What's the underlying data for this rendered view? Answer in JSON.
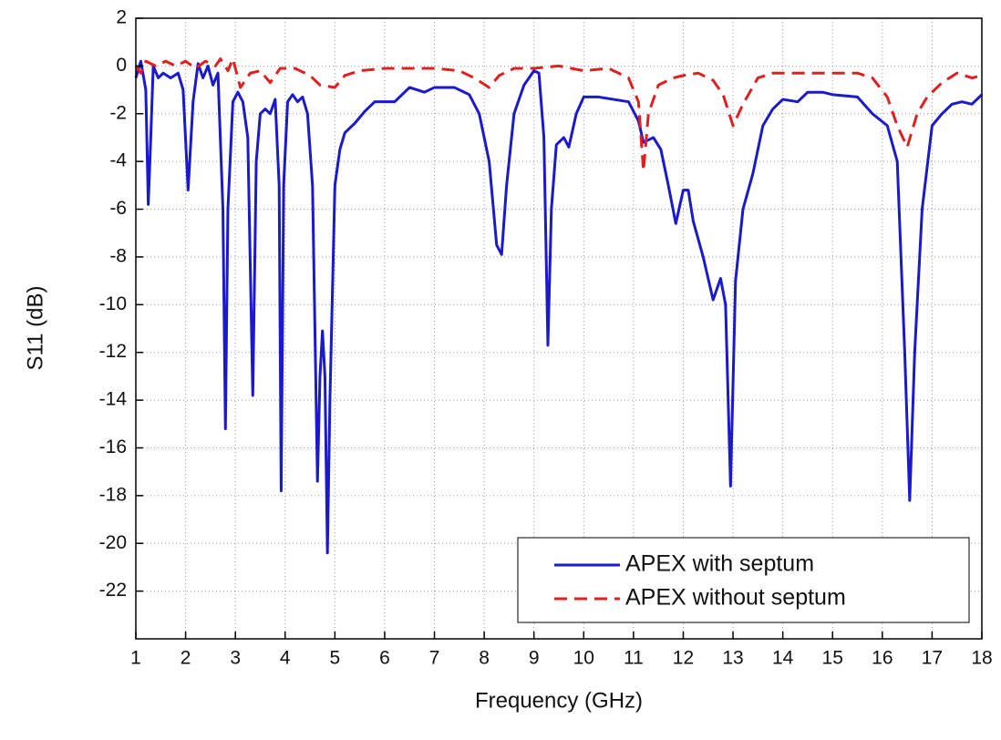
{
  "chart_data": {
    "type": "line",
    "xlabel": "Frequency (GHz)",
    "ylabel": "S11 (dB)",
    "xlim": [
      1,
      18
    ],
    "ylim": [
      -24,
      2
    ],
    "xticks": [
      1,
      2,
      3,
      4,
      5,
      6,
      7,
      8,
      9,
      10,
      11,
      12,
      13,
      14,
      15,
      16,
      17,
      18
    ],
    "yticks": [
      2,
      0,
      -2,
      -4,
      -6,
      -8,
      -10,
      -12,
      -14,
      -16,
      -18,
      -20,
      -22
    ],
    "grid": true,
    "legend": "lower right",
    "series": [
      {
        "name": "APEX with septum",
        "color": "#1a1acc",
        "style": "solid",
        "x": [
          1.0,
          1.1,
          1.2,
          1.25,
          1.3,
          1.35,
          1.45,
          1.55,
          1.7,
          1.85,
          1.95,
          2.05,
          2.15,
          2.25,
          2.35,
          2.45,
          2.55,
          2.65,
          2.75,
          2.8,
          2.85,
          2.95,
          3.05,
          3.15,
          3.25,
          3.35,
          3.42,
          3.5,
          3.6,
          3.7,
          3.8,
          3.88,
          3.92,
          3.97,
          4.05,
          4.15,
          4.25,
          4.35,
          4.45,
          4.55,
          4.65,
          4.7,
          4.75,
          4.8,
          4.85,
          4.9,
          5.0,
          5.1,
          5.2,
          5.4,
          5.6,
          5.8,
          6.0,
          6.2,
          6.5,
          6.8,
          7.0,
          7.4,
          7.7,
          7.9,
          8.1,
          8.25,
          8.35,
          8.45,
          8.6,
          8.8,
          9.0,
          9.1,
          9.2,
          9.28,
          9.35,
          9.45,
          9.6,
          9.7,
          9.85,
          10.0,
          10.3,
          10.6,
          10.9,
          11.1,
          11.2,
          11.4,
          11.55,
          11.7,
          11.85,
          12.0,
          12.1,
          12.2,
          12.4,
          12.6,
          12.75,
          12.85,
          12.95,
          13.05,
          13.2,
          13.4,
          13.6,
          13.8,
          14.0,
          14.3,
          14.5,
          14.8,
          15.0,
          15.5,
          15.8,
          16.1,
          16.3,
          16.45,
          16.55,
          16.65,
          16.8,
          17.0,
          17.2,
          17.4,
          17.6,
          17.8,
          18.0
        ],
        "values": [
          -0.5,
          0.2,
          -1,
          -5.8,
          -3,
          0,
          -0.5,
          -0.3,
          -0.5,
          -0.3,
          -1,
          -5.2,
          -1.5,
          0.1,
          -0.5,
          0,
          -0.8,
          -0.3,
          -6,
          -15.2,
          -6,
          -1.5,
          -1.1,
          -1.5,
          -3,
          -13.8,
          -4,
          -2,
          -1.8,
          -2,
          -1.4,
          -5,
          -17.8,
          -5,
          -1.5,
          -1.2,
          -1.5,
          -1.3,
          -2,
          -5,
          -17.4,
          -13,
          -11.1,
          -13,
          -20.4,
          -14,
          -5,
          -3.5,
          -2.8,
          -2.4,
          -1.9,
          -1.5,
          -1.5,
          -1.5,
          -0.9,
          -1.1,
          -0.9,
          -0.9,
          -1.2,
          -2,
          -4,
          -7.5,
          -7.9,
          -5,
          -2,
          -0.8,
          -0.2,
          -0.3,
          -3,
          -11.7,
          -6,
          -3.3,
          -3,
          -3.4,
          -2,
          -1.3,
          -1.3,
          -1.4,
          -1.5,
          -2.3,
          -3.2,
          -3,
          -3.5,
          -5,
          -6.6,
          -5.2,
          -5.2,
          -6.5,
          -8,
          -9.8,
          -8.9,
          -10,
          -17.6,
          -9,
          -6,
          -4.5,
          -2.5,
          -1.8,
          -1.4,
          -1.5,
          -1.1,
          -1.1,
          -1.2,
          -1.3,
          -2,
          -2.5,
          -4,
          -12,
          -18.2,
          -12,
          -6,
          -2.5,
          -2,
          -1.6,
          -1.5,
          -1.6,
          -1.2
        ]
      },
      {
        "name": "APEX without septum",
        "color": "#e02020",
        "style": "dashed",
        "x": [
          1.0,
          1.1,
          1.2,
          1.4,
          1.6,
          1.8,
          2.0,
          2.2,
          2.4,
          2.6,
          2.7,
          2.85,
          2.95,
          3.1,
          3.3,
          3.5,
          3.7,
          3.9,
          4.2,
          4.5,
          4.7,
          5.0,
          5.2,
          5.5,
          6.0,
          7.0,
          7.5,
          7.8,
          8.1,
          8.3,
          8.6,
          9.0,
          9.5,
          10.0,
          10.5,
          10.9,
          11.1,
          11.2,
          11.3,
          11.5,
          11.8,
          12.0,
          12.3,
          12.6,
          12.8,
          13.0,
          13.2,
          13.5,
          13.8,
          14.0,
          14.5,
          15.0,
          15.5,
          15.8,
          16.1,
          16.3,
          16.5,
          16.7,
          16.9,
          17.2,
          17.5,
          17.8,
          18.0
        ],
        "values": [
          0,
          -0.3,
          0.2,
          0,
          0.2,
          0,
          0.2,
          -0.1,
          0.2,
          0,
          0.3,
          -0.2,
          0.3,
          -0.9,
          -0.3,
          -0.2,
          -0.7,
          -0.1,
          -0.1,
          -0.4,
          -0.8,
          -0.9,
          -0.4,
          -0.2,
          -0.1,
          -0.1,
          -0.2,
          -0.5,
          -0.9,
          -0.4,
          -0.1,
          -0.1,
          0,
          -0.2,
          -0.1,
          -0.5,
          -1.5,
          -4.4,
          -2,
          -0.8,
          -0.5,
          -0.4,
          -0.3,
          -0.6,
          -1.2,
          -2.5,
          -1.6,
          -0.5,
          -0.3,
          -0.3,
          -0.3,
          -0.3,
          -0.3,
          -0.5,
          -1.3,
          -2.5,
          -3.4,
          -2,
          -1.3,
          -0.7,
          -0.3,
          -0.5,
          -0.4
        ]
      }
    ]
  }
}
